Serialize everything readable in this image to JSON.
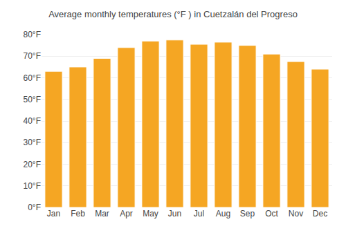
{
  "chart_data": {
    "type": "bar",
    "title": "Average monthly temperatures (°F ) in Cuetzalán del Progreso",
    "categories": [
      "Jan",
      "Feb",
      "Mar",
      "Apr",
      "May",
      "Jun",
      "Jul",
      "Aug",
      "Sep",
      "Oct",
      "Nov",
      "Dec"
    ],
    "values": [
      63,
      65,
      69,
      74,
      77,
      77.5,
      75.5,
      76.5,
      75,
      71,
      67.5,
      64
    ],
    "color": "#F5A623",
    "ylim": [
      0,
      80
    ],
    "yticks": [
      {
        "value": 0,
        "label": "0°F"
      },
      {
        "value": 10,
        "label": "10°F"
      },
      {
        "value": 20,
        "label": "20°F"
      },
      {
        "value": 30,
        "label": "30°F"
      },
      {
        "value": 40,
        "label": "40°F"
      },
      {
        "value": 50,
        "label": "50°F"
      },
      {
        "value": 60,
        "label": "60°F"
      },
      {
        "value": 70,
        "label": "70°F"
      },
      {
        "value": 80,
        "label": "80°F"
      }
    ],
    "grid": true
  }
}
